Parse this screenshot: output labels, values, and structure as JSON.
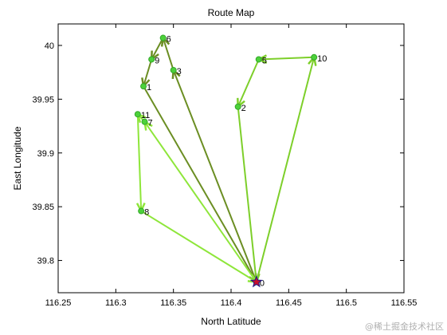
{
  "chart_data": {
    "type": "line",
    "title": "Route Map",
    "xlabel": "North Latitude",
    "ylabel": "East Longitude",
    "xlim": [
      116.25,
      116.55
    ],
    "ylim": [
      39.77,
      40.02
    ],
    "xticks": [
      116.25,
      116.3,
      116.35,
      116.4,
      116.45,
      116.5,
      116.55
    ],
    "xtick_labels": [
      "116.25",
      "116.3",
      "116.35",
      "116.4",
      "116.45",
      "116.5",
      "116.55"
    ],
    "yticks": [
      39.8,
      39.85,
      39.9,
      39.95,
      40.0
    ],
    "ytick_labels": [
      "39.8",
      "39.85",
      "39.9",
      "39.95",
      "40"
    ],
    "grid": false,
    "points": [
      {
        "id": "0",
        "x": 116.422,
        "y": 39.78
      },
      {
        "id": "1",
        "x": 116.324,
        "y": 39.962
      },
      {
        "id": "2",
        "x": 116.406,
        "y": 39.943
      },
      {
        "id": "3",
        "x": 116.35,
        "y": 39.977
      },
      {
        "id": "5",
        "x": 116.424,
        "y": 39.987
      },
      {
        "id": "6",
        "x": 116.341,
        "y": 40.007
      },
      {
        "id": "7",
        "x": 116.325,
        "y": 39.929
      },
      {
        "id": "8",
        "x": 116.322,
        "y": 39.846
      },
      {
        "id": "9",
        "x": 116.331,
        "y": 39.987
      },
      {
        "id": "10",
        "x": 116.472,
        "y": 39.989
      },
      {
        "id": "11",
        "x": 116.319,
        "y": 39.936
      }
    ],
    "routes": [
      {
        "color": "#6b8e23",
        "path": [
          "0",
          "3",
          "6",
          "9",
          "1",
          "0"
        ]
      },
      {
        "color": "#7dcf2a",
        "path": [
          "0",
          "10",
          "5",
          "2",
          "0"
        ]
      },
      {
        "color": "#8ee63a",
        "path": [
          "0",
          "7",
          "11",
          "8",
          "0"
        ]
      }
    ],
    "origin_marker_color": "#c8102e"
  },
  "watermark": "@稀土掘金技术社区"
}
